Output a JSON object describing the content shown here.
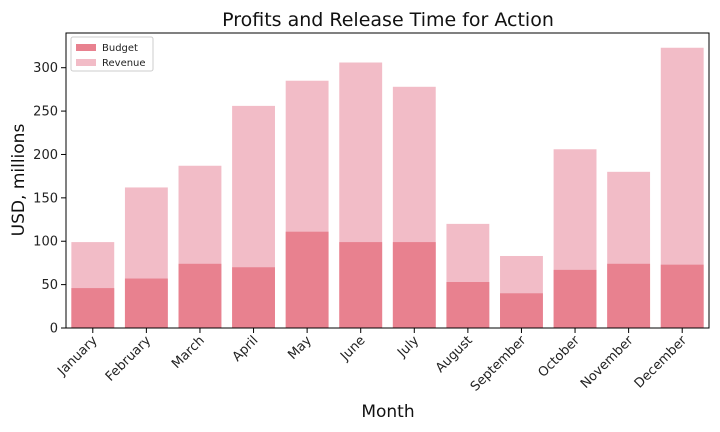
{
  "chart_data": {
    "type": "bar",
    "title": "Profits and Release Time for Action",
    "xlabel": "Month",
    "ylabel": "USD, millions",
    "ylim": [
      0,
      340
    ],
    "yticks": [
      0,
      50,
      100,
      150,
      200,
      250,
      300
    ],
    "grid": false,
    "legend_position": "top-left",
    "categories": [
      "January",
      "February",
      "March",
      "April",
      "May",
      "June",
      "July",
      "August",
      "September",
      "October",
      "November",
      "December"
    ],
    "series": [
      {
        "name": "Budget",
        "color": "#e8818f",
        "values": [
          46,
          57,
          74,
          70,
          111,
          99,
          99,
          53,
          40,
          67,
          74,
          73
        ]
      },
      {
        "name": "Revenue",
        "color": "#f2bcc7",
        "values": [
          99,
          162,
          187,
          256,
          285,
          306,
          278,
          120,
          83,
          206,
          180,
          323
        ]
      }
    ]
  }
}
